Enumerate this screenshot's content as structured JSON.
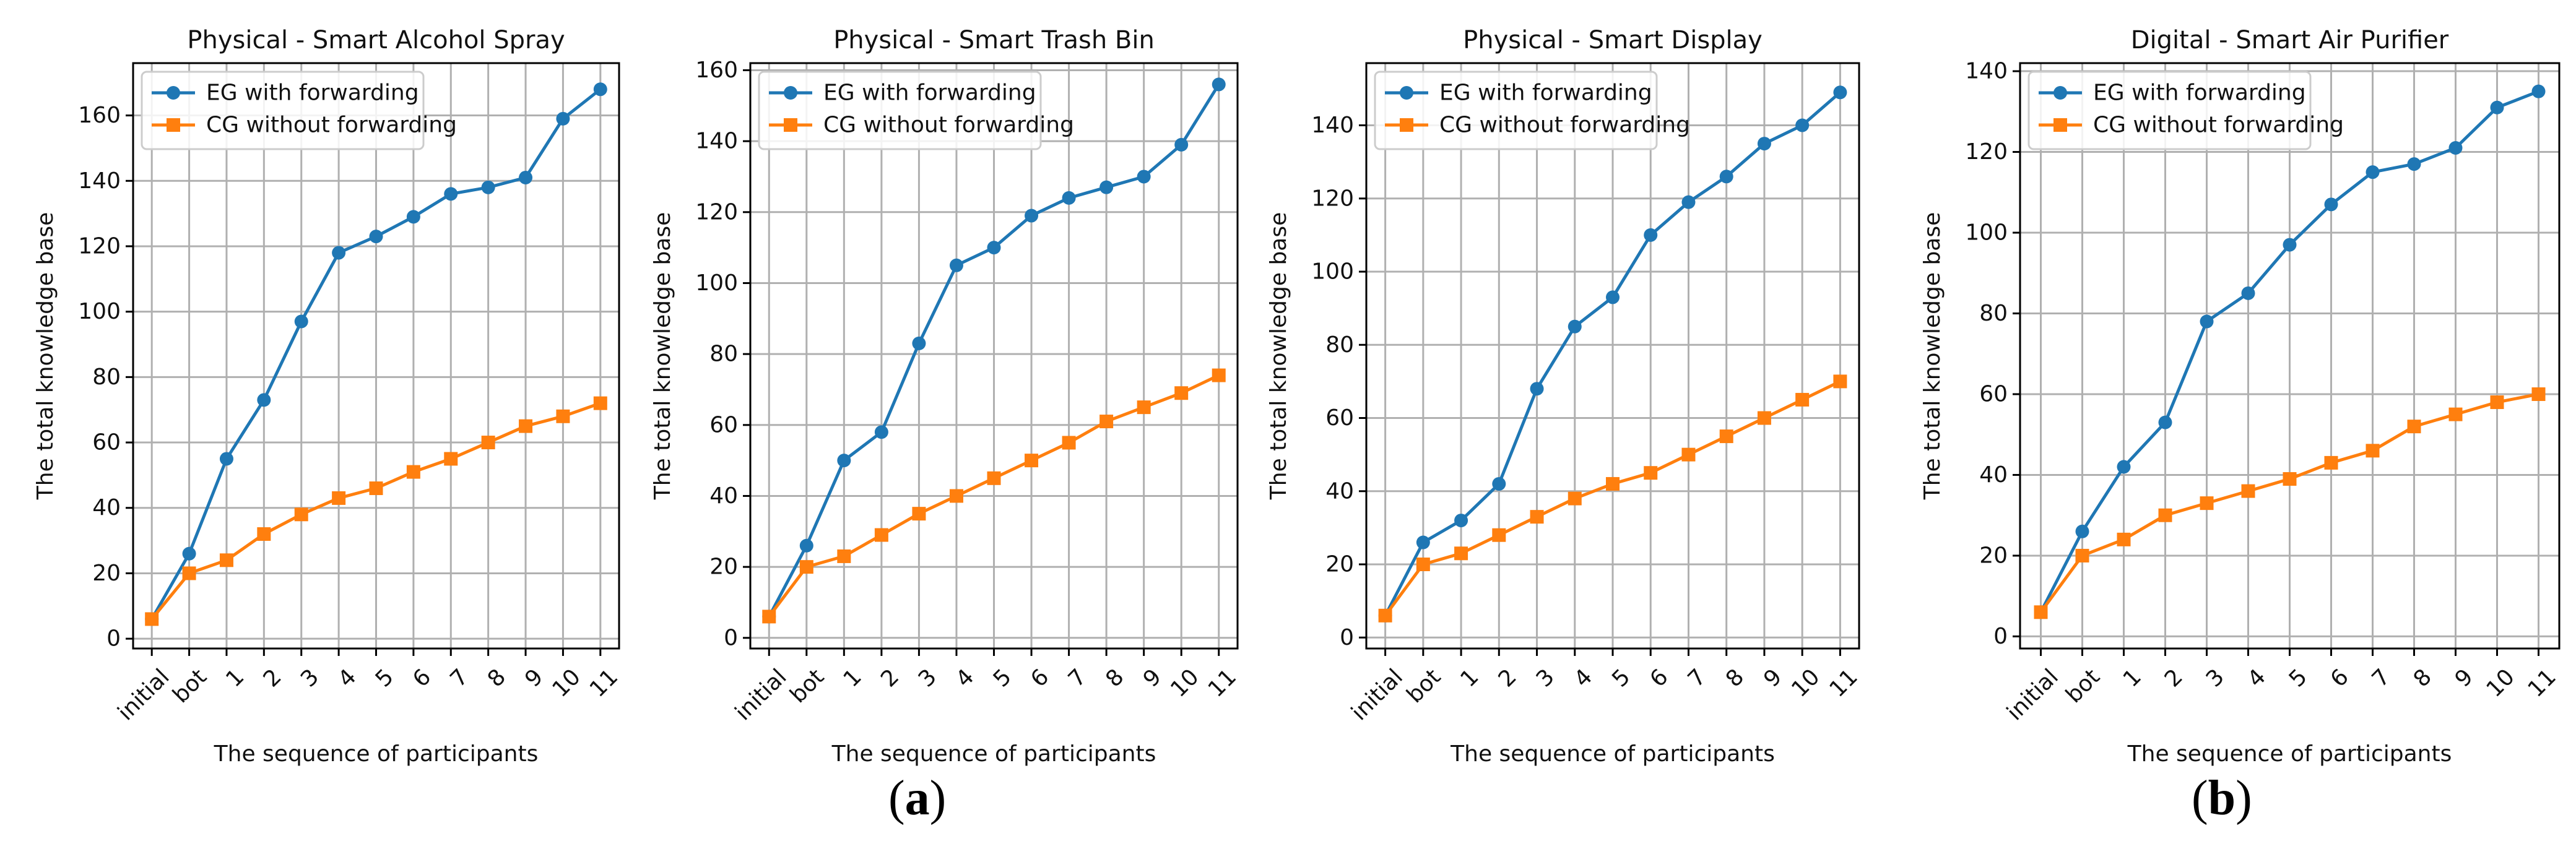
{
  "chart_data": [
    {
      "type": "line",
      "title": "Physical - Smart Alcohol Spray",
      "xlabel": "The sequence of participants",
      "ylabel": "The total knowledge base",
      "categories": [
        "initial",
        "bot",
        "1",
        "2",
        "3",
        "4",
        "5",
        "6",
        "7",
        "8",
        "9",
        "10",
        "11"
      ],
      "ylim": [
        -3,
        176
      ],
      "yticks": [
        0,
        20,
        40,
        60,
        80,
        100,
        120,
        140,
        160
      ],
      "grid": true,
      "legend": "top-left",
      "series": [
        {
          "name": "EG with forwarding",
          "color": "#1f77b4",
          "marker": "circle",
          "values": [
            6,
            26,
            55,
            73,
            97,
            118,
            123,
            129,
            136,
            138,
            141,
            159,
            168
          ]
        },
        {
          "name": "CG without forwarding",
          "color": "#ff7f0e",
          "marker": "square",
          "values": [
            6,
            20,
            24,
            32,
            38,
            43,
            46,
            51,
            55,
            60,
            65,
            68,
            72
          ]
        }
      ]
    },
    {
      "type": "line",
      "title": "Physical - Smart Trash Bin",
      "xlabel": "The sequence of participants",
      "ylabel": "The total knowledge base",
      "categories": [
        "initial",
        "bot",
        "1",
        "2",
        "3",
        "4",
        "5",
        "6",
        "7",
        "8",
        "9",
        "10",
        "11"
      ],
      "ylim": [
        -3,
        162
      ],
      "yticks": [
        0,
        20,
        40,
        60,
        80,
        100,
        120,
        140,
        160
      ],
      "grid": true,
      "legend": "top-left",
      "series": [
        {
          "name": "EG with forwarding",
          "color": "#1f77b4",
          "marker": "circle",
          "values": [
            6,
            26,
            50,
            58,
            83,
            105,
            110,
            119,
            124,
            127,
            130,
            139,
            156
          ]
        },
        {
          "name": "CG without forwarding",
          "color": "#ff7f0e",
          "marker": "square",
          "values": [
            6,
            20,
            23,
            29,
            35,
            40,
            45,
            50,
            55,
            61,
            65,
            69,
            74
          ]
        }
      ]
    },
    {
      "type": "line",
      "title": "Physical - Smart Display",
      "xlabel": "The sequence of participants",
      "ylabel": "The total knowledge base",
      "categories": [
        "initial",
        "bot",
        "1",
        "2",
        "3",
        "4",
        "5",
        "6",
        "7",
        "8",
        "9",
        "10",
        "11"
      ],
      "ylim": [
        -3,
        157
      ],
      "yticks": [
        0,
        20,
        40,
        60,
        80,
        100,
        120,
        140
      ],
      "grid": true,
      "legend": "top-left",
      "series": [
        {
          "name": "EG with forwarding",
          "color": "#1f77b4",
          "marker": "circle",
          "values": [
            6,
            26,
            32,
            42,
            68,
            85,
            93,
            110,
            119,
            126,
            135,
            140,
            149
          ]
        },
        {
          "name": "CG without forwarding",
          "color": "#ff7f0e",
          "marker": "square",
          "values": [
            6,
            20,
            23,
            28,
            33,
            38,
            42,
            45,
            50,
            55,
            60,
            65,
            70
          ]
        }
      ]
    },
    {
      "type": "line",
      "title": "Digital - Smart Air Purifier",
      "xlabel": "The sequence of participants",
      "ylabel": "The total knowledge base",
      "categories": [
        "initial",
        "bot",
        "1",
        "2",
        "3",
        "4",
        "5",
        "6",
        "7",
        "8",
        "9",
        "10",
        "11"
      ],
      "ylim": [
        -3,
        142
      ],
      "yticks": [
        0,
        20,
        40,
        60,
        80,
        100,
        120,
        140
      ],
      "grid": true,
      "legend": "top-left",
      "series": [
        {
          "name": "EG with forwarding",
          "color": "#1f77b4",
          "marker": "circle",
          "values": [
            6,
            26,
            42,
            53,
            78,
            85,
            97,
            107,
            115,
            117,
            121,
            131,
            135
          ]
        },
        {
          "name": "CG without forwarding",
          "color": "#ff7f0e",
          "marker": "square",
          "values": [
            6,
            20,
            24,
            30,
            33,
            36,
            39,
            43,
            46,
            52,
            55,
            58,
            60
          ]
        }
      ]
    }
  ],
  "captions": {
    "a": {
      "open": "(",
      "letter": "a",
      "close": ")"
    },
    "b": {
      "open": "(",
      "letter": "b",
      "close": ")"
    }
  }
}
